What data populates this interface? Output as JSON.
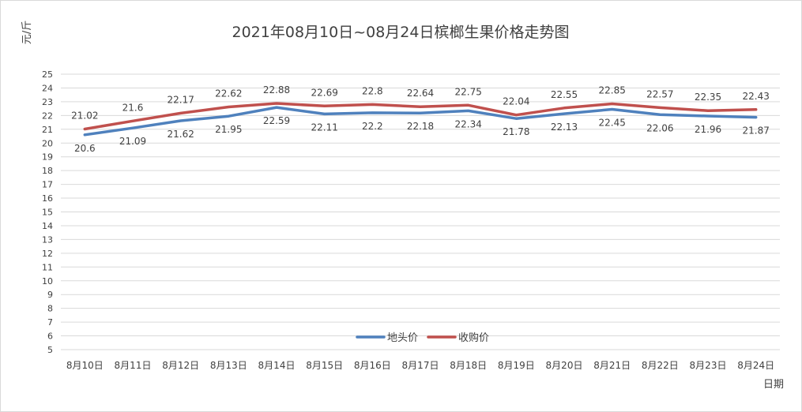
{
  "chart_data": {
    "type": "line",
    "title": "2021年08月10日~08月24日槟榔生果价格走势图",
    "ylabel": "元/斤",
    "xlabel": "日期",
    "categories": [
      "8月10日",
      "8月11日",
      "8月12日",
      "8月13日",
      "8月14日",
      "8月15日",
      "8月16日",
      "8月17日",
      "8月18日",
      "8月19日",
      "8月20日",
      "8月21日",
      "8月22日",
      "8月23日",
      "8月24日"
    ],
    "ylim": [
      5,
      25
    ],
    "yticks": [
      5,
      6,
      7,
      8,
      9,
      10,
      11,
      12,
      13,
      14,
      15,
      16,
      17,
      18,
      19,
      20,
      21,
      22,
      23,
      24,
      25
    ],
    "grid": true,
    "legend_position": "bottom-center",
    "series": [
      {
        "name": "地头价",
        "color": "#4f81bd",
        "label_position": "below",
        "values": [
          20.6,
          21.09,
          21.62,
          21.95,
          22.59,
          22.11,
          22.2,
          22.18,
          22.34,
          21.78,
          22.13,
          22.45,
          22.06,
          21.96,
          21.87
        ]
      },
      {
        "name": "收购价",
        "color": "#c0504d",
        "label_position": "above",
        "values": [
          21.02,
          21.6,
          22.17,
          22.62,
          22.88,
          22.69,
          22.8,
          22.64,
          22.75,
          22.04,
          22.55,
          22.85,
          22.57,
          22.35,
          22.43
        ]
      }
    ]
  }
}
